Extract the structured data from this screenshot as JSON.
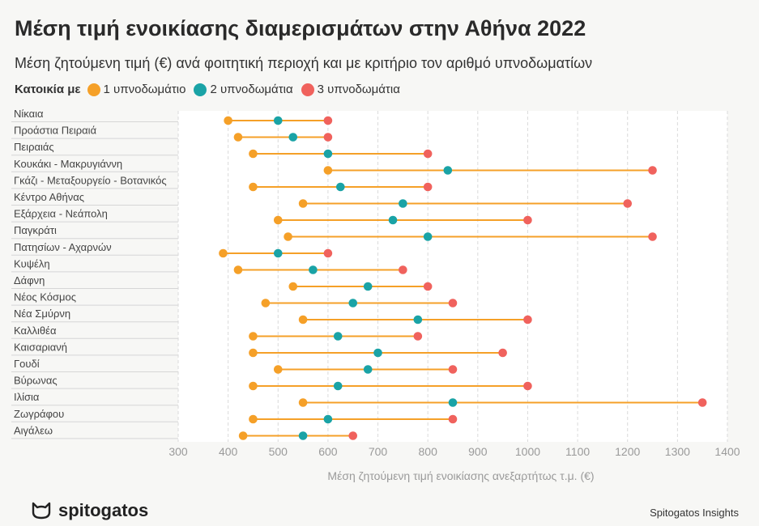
{
  "title": "Μέση τιμή ενοικίασης διαμερισμάτων στην Αθήνα 2022",
  "subtitle": "Μέση ζητούμενη τιμή (€) ανά φοιτητική περιοχή και με κριτήριο τον αριθμό υπνοδωματίων",
  "legend": {
    "title": "Κατοικία με",
    "items": [
      {
        "label": "1 υπνοδωμάτιο",
        "color": "#f5a028"
      },
      {
        "label": "2 υπνοδωμάτια",
        "color": "#1aa3a6"
      },
      {
        "label": "3 υπνοδωμάτια",
        "color": "#f0625d"
      }
    ]
  },
  "footer": {
    "logo_text": "spitogatos",
    "credit": "Spitogatos Insights"
  },
  "chart_data": {
    "type": "dumbbell",
    "xlabel": "Μέση ζητούμενη τιμή ενοικίασης ανεξαρτήτως τ.μ. (€)",
    "ylabel": "",
    "xlim": [
      300,
      1400
    ],
    "xticks": [
      300,
      400,
      500,
      600,
      700,
      800,
      900,
      1000,
      1100,
      1200,
      1300,
      1400
    ],
    "grid": true,
    "line_color": "#f5a028",
    "categories": [
      "Νίκαια",
      "Προάστια Πειραιά",
      "Πειραιάς",
      "Κουκάκι - Μακρυγιάννη",
      "Γκάζι - Μεταξουργείο - Βοτανικός",
      "Κέντρο Αθήνας",
      "Εξάρχεια - Νεάπολη",
      "Παγκράτι",
      "Πατησίων - Αχαρνών",
      "Κυψέλη",
      "Δάφνη",
      "Νέος Κόσμος",
      "Νέα Σμύρνη",
      "Καλλιθέα",
      "Καισαριανή",
      "Γουδί",
      "Βύρωνας",
      "Ιλίσια",
      "Ζωγράφου",
      "Αιγάλεω"
    ],
    "series": [
      {
        "name": "1 υπνοδωμάτιο",
        "color": "#f5a028",
        "values": [
          400,
          420,
          450,
          600,
          450,
          550,
          500,
          520,
          390,
          420,
          530,
          475,
          550,
          450,
          450,
          500,
          450,
          550,
          450,
          430
        ]
      },
      {
        "name": "2 υπνοδωμάτια",
        "color": "#1aa3a6",
        "values": [
          500,
          530,
          600,
          840,
          625,
          750,
          730,
          800,
          500,
          570,
          680,
          650,
          780,
          620,
          700,
          680,
          620,
          850,
          600,
          550
        ]
      },
      {
        "name": "3 υπνοδωμάτια",
        "color": "#f0625d",
        "values": [
          600,
          600,
          800,
          1250,
          800,
          1200,
          1000,
          1250,
          600,
          750,
          800,
          850,
          1000,
          780,
          950,
          850,
          1000,
          1350,
          850,
          650
        ]
      }
    ]
  }
}
